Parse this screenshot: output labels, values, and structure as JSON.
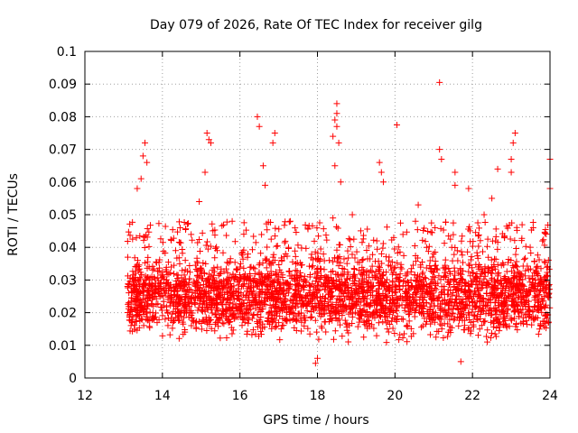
{
  "chart_data": {
    "type": "scatter",
    "title": "Day 079 of 2026, Rate Of TEC Index for receiver gilg",
    "xlabel": "GPS time / hours",
    "ylabel": "ROTI / TECUs",
    "xlim": [
      12,
      24
    ],
    "ylim": [
      0,
      0.1
    ],
    "xticks": [
      "12",
      "14",
      "16",
      "18",
      "20",
      "22",
      "24"
    ],
    "yticks": [
      "0",
      "0.01",
      "0.02",
      "0.03",
      "0.04",
      "0.05",
      "0.06",
      "0.07",
      "0.08",
      "0.09",
      "0.1"
    ],
    "grid": true,
    "marker": "plus",
    "series": [
      {
        "name": "ROTI",
        "color": "#ff0000",
        "x_start": 13.1,
        "x_end": 24.0,
        "bulk_range": [
          0.005,
          0.035
        ],
        "points": [
          [
            13.55,
            0.072
          ],
          [
            13.5,
            0.068
          ],
          [
            13.6,
            0.066
          ],
          [
            13.45,
            0.061
          ],
          [
            13.35,
            0.058
          ],
          [
            15.15,
            0.075
          ],
          [
            15.2,
            0.073
          ],
          [
            15.25,
            0.072
          ],
          [
            15.1,
            0.063
          ],
          [
            16.45,
            0.08
          ],
          [
            16.5,
            0.077
          ],
          [
            16.9,
            0.075
          ],
          [
            16.85,
            0.072
          ],
          [
            16.6,
            0.065
          ],
          [
            16.65,
            0.059
          ],
          [
            18.5,
            0.084
          ],
          [
            18.5,
            0.081
          ],
          [
            18.45,
            0.079
          ],
          [
            18.5,
            0.077
          ],
          [
            18.4,
            0.074
          ],
          [
            18.55,
            0.072
          ],
          [
            18.45,
            0.065
          ],
          [
            18.6,
            0.06
          ],
          [
            18.4,
            0.049
          ],
          [
            20.05,
            0.0775
          ],
          [
            19.6,
            0.066
          ],
          [
            19.65,
            0.063
          ],
          [
            19.7,
            0.06
          ],
          [
            21.15,
            0.0905
          ],
          [
            21.15,
            0.07
          ],
          [
            21.2,
            0.067
          ],
          [
            21.55,
            0.063
          ],
          [
            21.55,
            0.059
          ],
          [
            21.9,
            0.058
          ],
          [
            23.1,
            0.075
          ],
          [
            23.05,
            0.072
          ],
          [
            23.0,
            0.067
          ],
          [
            23.0,
            0.063
          ],
          [
            22.65,
            0.064
          ],
          [
            22.5,
            0.055
          ],
          [
            24.0,
            0.067
          ],
          [
            24.0,
            0.058
          ],
          [
            14.95,
            0.054
          ],
          [
            15.8,
            0.048
          ],
          [
            17.3,
            0.048
          ],
          [
            18.9,
            0.05
          ],
          [
            20.6,
            0.053
          ],
          [
            22.3,
            0.05
          ],
          [
            17.95,
            0.0045
          ],
          [
            21.7,
            0.005
          ],
          [
            18.0,
            0.006
          ]
        ]
      }
    ]
  }
}
